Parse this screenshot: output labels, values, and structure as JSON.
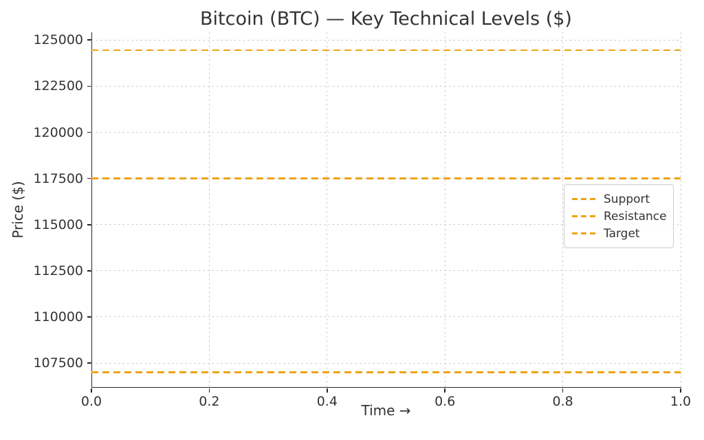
{
  "chart_data": {
    "type": "line",
    "title": "Bitcoin (BTC) — Key Technical Levels ($)",
    "xlabel": "Time →",
    "ylabel": "Price ($)",
    "xlim": [
      0,
      1
    ],
    "ylim": [
      106200,
      125420
    ],
    "grid": true,
    "legend_position": "center-right",
    "xticks": {
      "values": [
        0,
        0.2,
        0.4,
        0.6,
        0.8,
        1.0
      ],
      "labels": [
        "0.0",
        "0.2",
        "0.4",
        "0.6",
        "0.8",
        "1.0"
      ]
    },
    "yticks": {
      "values": [
        107500,
        110000,
        112500,
        115000,
        117500,
        120000,
        122500,
        125000
      ],
      "labels": [
        "107500",
        "110000",
        "112500",
        "115000",
        "117500",
        "120000",
        "122500",
        "125000"
      ]
    },
    "series": [
      {
        "name": "Support",
        "kind": "hline",
        "value": 107000,
        "color": "#EDA413",
        "linestyle": "dashed",
        "linewidth": 2.6
      },
      {
        "name": "Resistance",
        "kind": "hline",
        "value": 117500,
        "color": "#EDA413",
        "linestyle": "dashed",
        "linewidth": 2.6
      },
      {
        "name": "Target",
        "kind": "hline",
        "value": 124450,
        "color": "#EDA413",
        "linestyle": "dashed",
        "linewidth": 2.6
      }
    ]
  }
}
